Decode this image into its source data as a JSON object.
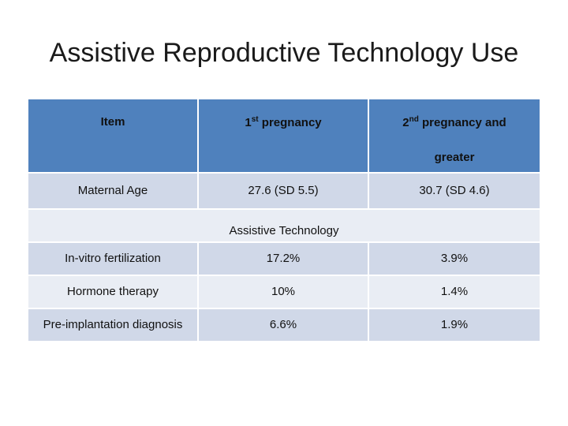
{
  "title": "Assistive Reproductive Technology Use",
  "table": {
    "headers": {
      "item": "Item",
      "first_num": "1",
      "first_sup": "st",
      "first_text": " pregnancy",
      "second_num": "2",
      "second_sup": "nd",
      "second_text": " pregnancy and",
      "second_line2": "greater"
    },
    "maternal_age": {
      "label": "Maternal Age",
      "first": "27.6 (SD 5.5)",
      "second": "30.7 (SD 4.6)"
    },
    "section_label": "Assistive Technology",
    "rows": [
      {
        "label": "In-vitro fertilization",
        "first": "17.2%",
        "second": "3.9%"
      },
      {
        "label": "Hormone therapy",
        "first": "10%",
        "second": "1.4%"
      },
      {
        "label": "Pre-implantation diagnosis",
        "first": "6.6%",
        "second": "1.9%"
      }
    ]
  }
}
